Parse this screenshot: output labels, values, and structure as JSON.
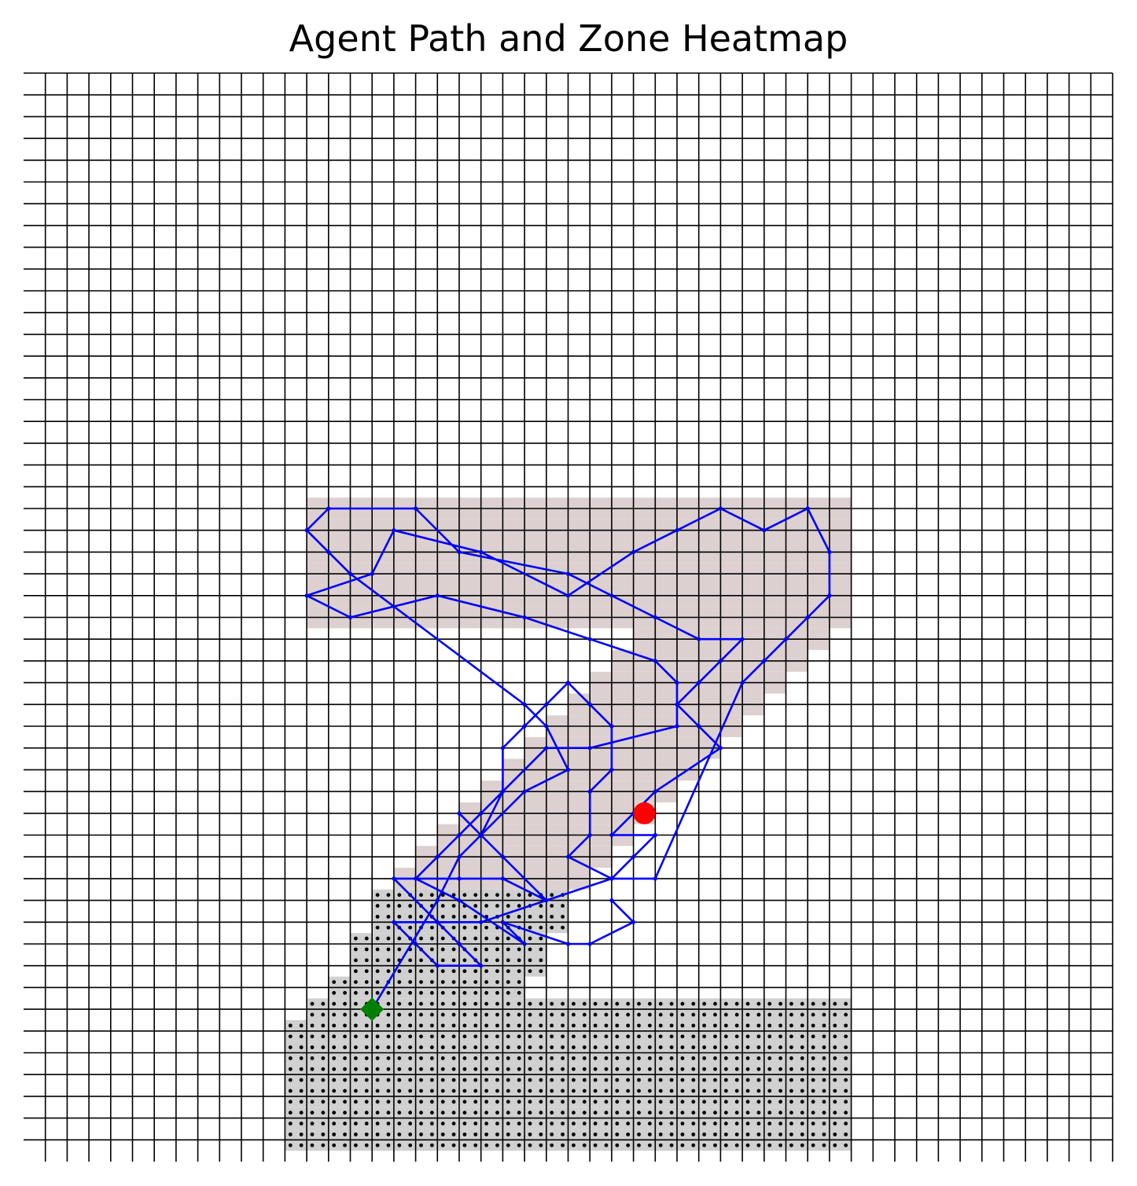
{
  "chart_data": {
    "type": "heatmap",
    "title": "Agent Path and Zone Heatmap",
    "xlabel": "",
    "ylabel": "",
    "axes_visible": false,
    "grid": true,
    "grid_size": [
      50,
      50
    ],
    "xlim": [
      0,
      50
    ],
    "ylim": [
      0,
      50
    ],
    "zone_rows": [
      {
        "row": 30,
        "cols": [
          13,
          37
        ]
      },
      {
        "row": 29,
        "cols": [
          13,
          37
        ]
      },
      {
        "row": 28,
        "cols": [
          13,
          37
        ]
      },
      {
        "row": 27,
        "cols": [
          13,
          37
        ]
      },
      {
        "row": 26,
        "cols": [
          13,
          37
        ]
      },
      {
        "row": 25,
        "cols": [
          13,
          37
        ]
      },
      {
        "row": 24,
        "cols": [
          28,
          36
        ]
      },
      {
        "row": 23,
        "cols": [
          27,
          35
        ]
      },
      {
        "row": 22,
        "cols": [
          26,
          34
        ]
      },
      {
        "row": 21,
        "cols": [
          25,
          33
        ]
      },
      {
        "row": 20,
        "cols": [
          24,
          32
        ]
      },
      {
        "row": 19,
        "cols": [
          23,
          31
        ]
      },
      {
        "row": 18,
        "cols": [
          22,
          30
        ]
      },
      {
        "row": 17,
        "cols": [
          21,
          29
        ]
      },
      {
        "row": 16,
        "cols": [
          20,
          28
        ]
      },
      {
        "row": 15,
        "cols": [
          19,
          27
        ]
      },
      {
        "row": 14,
        "cols": [
          18,
          26
        ]
      },
      {
        "row": 13,
        "cols": [
          17,
          25
        ]
      },
      {
        "row": 12,
        "cols": [
          16,
          24
        ]
      },
      {
        "row": 11,
        "cols": [
          16,
          24
        ]
      },
      {
        "row": 10,
        "cols": [
          15,
          23
        ]
      },
      {
        "row": 9,
        "cols": [
          15,
          23
        ]
      },
      {
        "row": 8,
        "cols": [
          14,
          22
        ]
      },
      {
        "row": 7,
        "cols": [
          13,
          37
        ]
      },
      {
        "row": 6,
        "cols": [
          12,
          37
        ]
      },
      {
        "row": 5,
        "cols": [
          12,
          37
        ]
      },
      {
        "row": 4,
        "cols": [
          12,
          37
        ]
      },
      {
        "row": 3,
        "cols": [
          12,
          37
        ]
      },
      {
        "row": 2,
        "cols": [
          12,
          37
        ]
      },
      {
        "row": 1,
        "cols": [
          12,
          37
        ]
      }
    ],
    "visited_max_row": 13,
    "series": [
      {
        "points": [
          [
            16,
            7
          ],
          [
            19,
            12
          ],
          [
            20,
            14
          ],
          [
            23,
            17
          ],
          [
            25,
            18
          ],
          [
            24,
            20
          ],
          [
            23,
            21
          ],
          [
            15,
            27
          ],
          [
            14,
            28
          ],
          [
            13,
            29
          ],
          [
            14,
            30
          ],
          [
            18,
            30
          ],
          [
            20,
            28
          ],
          [
            25,
            27
          ],
          [
            27,
            26
          ],
          [
            29,
            25
          ],
          [
            31,
            24
          ],
          [
            33,
            24
          ],
          [
            32,
            23
          ],
          [
            31,
            22
          ],
          [
            30,
            21
          ],
          [
            31,
            20
          ],
          [
            32,
            19
          ],
          [
            29,
            17
          ],
          [
            28,
            16
          ],
          [
            27,
            15
          ],
          [
            29,
            15
          ],
          [
            28,
            14
          ],
          [
            27,
            13
          ],
          [
            29,
            13
          ],
          [
            33,
            22
          ],
          [
            34,
            23
          ],
          [
            35,
            24
          ],
          [
            36,
            25
          ],
          [
            37,
            26
          ],
          [
            37,
            28
          ],
          [
            36,
            30
          ],
          [
            34,
            29
          ],
          [
            32,
            30
          ],
          [
            30,
            29
          ],
          [
            28,
            28
          ],
          [
            25,
            26
          ],
          [
            21,
            28
          ],
          [
            17,
            29
          ],
          [
            16,
            27
          ],
          [
            13,
            26
          ],
          [
            15,
            25
          ],
          [
            19,
            26
          ],
          [
            23,
            25
          ],
          [
            26,
            24
          ],
          [
            29,
            23
          ],
          [
            30,
            22
          ],
          [
            30,
            20
          ],
          [
            26,
            19
          ],
          [
            24,
            19
          ],
          [
            22,
            17
          ],
          [
            21,
            15
          ],
          [
            20,
            16
          ],
          [
            22,
            14
          ],
          [
            24,
            12
          ],
          [
            22,
            13
          ],
          [
            20,
            13
          ],
          [
            17,
            13
          ],
          [
            19,
            11
          ],
          [
            20,
            10
          ],
          [
            21,
            9
          ],
          [
            19,
            9
          ],
          [
            18,
            10
          ],
          [
            17,
            11
          ],
          [
            21,
            11
          ],
          [
            24,
            12
          ],
          [
            27,
            13
          ],
          [
            25,
            14
          ],
          [
            26,
            15
          ],
          [
            26,
            17
          ],
          [
            27,
            18
          ],
          [
            27,
            20
          ],
          [
            26,
            21
          ],
          [
            25,
            22
          ],
          [
            24,
            21
          ],
          [
            23,
            20
          ],
          [
            22,
            19
          ],
          [
            22,
            17
          ],
          [
            21,
            16
          ],
          [
            20,
            15
          ],
          [
            19,
            14
          ],
          [
            18,
            13
          ],
          [
            20,
            12
          ],
          [
            23,
            10
          ],
          [
            22,
            11
          ],
          [
            25,
            10
          ],
          [
            26,
            10
          ],
          [
            28,
            11
          ],
          [
            27,
            12
          ]
        ]
      }
    ],
    "start": {
      "x": 16,
      "y": 7,
      "marker": "diamond",
      "color": "#008000"
    },
    "end": {
      "x": 28.5,
      "y": 16,
      "marker": "circle",
      "color": "#ff0000"
    },
    "colors": {
      "grid_line": "#000000",
      "zone_fill": "#d0d0d0",
      "visited_tint": "#ddd0d0",
      "path": "#0000ff",
      "dot": "#000000"
    }
  }
}
